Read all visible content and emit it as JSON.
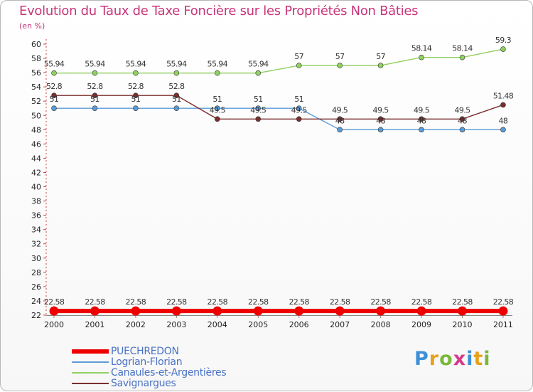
{
  "unit_label": "(en %)",
  "brand": {
    "name": "Proxiti",
    "letters": [
      "P",
      "r",
      "o",
      "x",
      "i",
      "t",
      "i"
    ],
    "letter_colors": [
      "#3d8fd6",
      "#e8a11c",
      "#7ab83a",
      "#d63a8a",
      "#3d8fd6",
      "#e8a11c",
      "#7ab83a"
    ]
  },
  "chart_data": {
    "type": "line",
    "title": "Evolution du Taux de Taxe Foncière sur les Propriétés Non Bâties",
    "xlabel": "",
    "ylabel": "(en %)",
    "categories": [
      "2000",
      "2001",
      "2002",
      "2003",
      "2004",
      "2005",
      "2006",
      "2007",
      "2008",
      "2009",
      "2010",
      "2011"
    ],
    "ylim": [
      22,
      60
    ],
    "yticks": [
      22,
      24,
      26,
      28,
      30,
      32,
      34,
      36,
      38,
      40,
      42,
      44,
      46,
      48,
      50,
      52,
      54,
      56,
      58,
      60
    ],
    "grid": false,
    "legend_position": "bottom-left",
    "series": [
      {
        "name": "PUECHREDON",
        "color": "#ee0000",
        "values": [
          22.58,
          22.58,
          22.58,
          22.58,
          22.58,
          22.58,
          22.58,
          22.58,
          22.58,
          22.58,
          22.58,
          22.58
        ],
        "labels": [
          "22.58",
          "22.58",
          "22.58",
          "22.58",
          "22.58",
          "22.58",
          "22.58",
          "22.58",
          "22.58",
          "22.58",
          "22.58",
          "22.58"
        ]
      },
      {
        "name": "Logrian-Florian",
        "color": "#5b9bd5",
        "values": [
          51,
          51,
          51,
          51,
          51,
          51,
          51,
          48,
          48,
          48,
          48,
          48
        ],
        "labels": [
          "51",
          "51",
          "51",
          "51",
          "51",
          "51",
          "51",
          "48",
          "48",
          "48",
          "48",
          "48"
        ]
      },
      {
        "name": "Canaules-et-Argentières",
        "color": "#90d060",
        "values": [
          55.94,
          55.94,
          55.94,
          55.94,
          55.94,
          55.94,
          57,
          57,
          57,
          58.14,
          58.14,
          59.3
        ],
        "labels": [
          "55.94",
          "55.94",
          "55.94",
          "55.94",
          "55.94",
          "55.94",
          "57",
          "57",
          "57",
          "58.14",
          "58.14",
          "59.3"
        ]
      },
      {
        "name": "Savignargues",
        "color": "#7a2e2e",
        "values": [
          52.8,
          52.8,
          52.8,
          52.8,
          49.5,
          49.5,
          49.5,
          49.5,
          49.5,
          49.5,
          49.5,
          51.48
        ],
        "labels": [
          "52.8",
          "52.8",
          "52.8",
          "52.8",
          "49.5",
          "49.5",
          "49.5",
          "49.5",
          "49.5",
          "49.5",
          "49.5",
          "51.48"
        ]
      }
    ]
  }
}
